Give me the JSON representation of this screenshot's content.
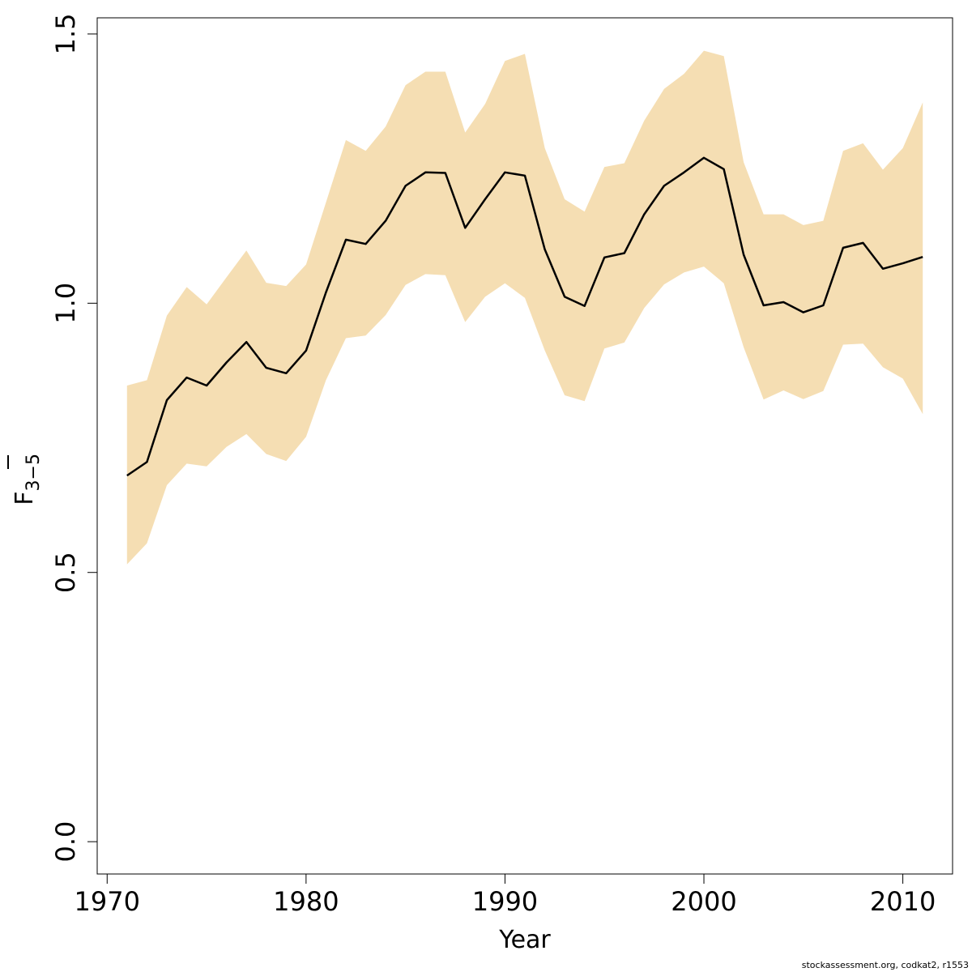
{
  "chart_data": {
    "type": "line",
    "xlabel": "Year",
    "ylabel": {
      "main": "F",
      "subscript": "3−5"
    },
    "xlim": [
      1969.5,
      2012.5
    ],
    "ylim": [
      -0.06,
      1.53
    ],
    "xticks": [
      "1970",
      "1980",
      "1990",
      "2000",
      "2010"
    ],
    "yticks": [
      "0.0",
      "0.5",
      "1.0",
      "1.5"
    ],
    "colors": {
      "band": "#f5deb3",
      "line": "#000000"
    },
    "x": [
      1971,
      1972,
      1973,
      1974,
      1975,
      1976,
      1977,
      1978,
      1979,
      1980,
      1981,
      1982,
      1983,
      1984,
      1985,
      1986,
      1987,
      1988,
      1989,
      1990,
      1991,
      1992,
      1993,
      1994,
      1995,
      1996,
      1997,
      1998,
      1999,
      2000,
      2001,
      2002,
      2003,
      2004,
      2005,
      2006,
      2007,
      2008,
      2009,
      2010,
      2011
    ],
    "series": [
      {
        "values": [
          0.68,
          0.705,
          0.82,
          0.862,
          0.847,
          0.89,
          0.928,
          0.88,
          0.87,
          0.912,
          1.02,
          1.118,
          1.11,
          1.153,
          1.218,
          1.243,
          1.242,
          1.14,
          1.193,
          1.243,
          1.237,
          1.1,
          1.012,
          0.995,
          1.085,
          1.093,
          1.165,
          1.218,
          1.243,
          1.27,
          1.249,
          1.09,
          0.996,
          1.002,
          0.983,
          0.996,
          1.103,
          1.112,
          1.064,
          1.074,
          1.086
        ]
      },
      {
        "values": [
          0.847,
          0.857,
          0.977,
          1.03,
          0.998,
          1.048,
          1.098,
          1.038,
          1.032,
          1.072,
          1.187,
          1.303,
          1.283,
          1.328,
          1.405,
          1.43,
          1.43,
          1.317,
          1.37,
          1.45,
          1.463,
          1.288,
          1.193,
          1.17,
          1.253,
          1.26,
          1.339,
          1.398,
          1.426,
          1.469,
          1.459,
          1.262,
          1.165,
          1.165,
          1.145,
          1.153,
          1.283,
          1.297,
          1.248,
          1.288,
          1.373
        ]
      },
      {
        "values": [
          0.515,
          0.554,
          0.662,
          0.702,
          0.697,
          0.733,
          0.757,
          0.72,
          0.707,
          0.752,
          0.857,
          0.935,
          0.94,
          0.978,
          1.034,
          1.054,
          1.052,
          0.965,
          1.012,
          1.037,
          1.01,
          0.912,
          0.829,
          0.818,
          0.916,
          0.927,
          0.991,
          1.035,
          1.057,
          1.068,
          1.037,
          0.918,
          0.821,
          0.838,
          0.822,
          0.837,
          0.923,
          0.925,
          0.881,
          0.86,
          0.794
        ]
      }
    ]
  },
  "footer": {
    "credit": "stockassessment.org, codkat2, r1553"
  }
}
